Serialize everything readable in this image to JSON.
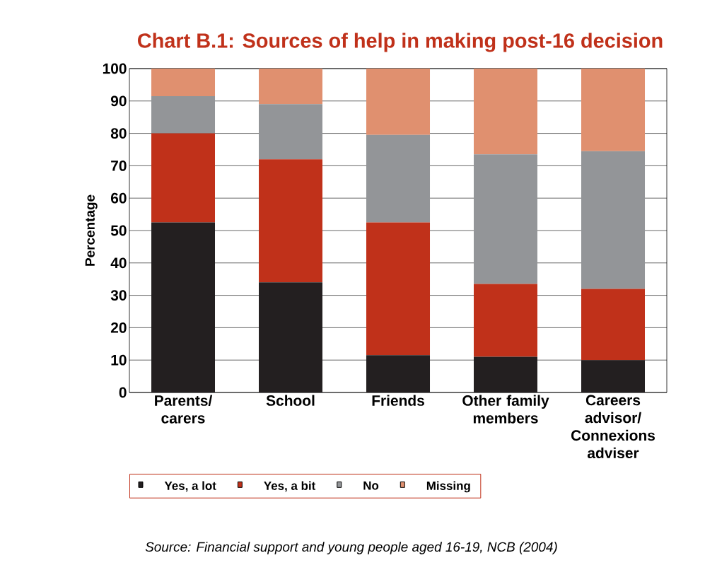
{
  "chart_data": {
    "type": "bar",
    "stacked": true,
    "title": "Chart B.1: Sources of help in making post-16 decision",
    "ylabel": "Percentage",
    "categories": [
      "Parents/ carers",
      "School",
      "Friends",
      "Other family members",
      "Careers advisor/ Connexions adviser"
    ],
    "series": [
      {
        "name": "Yes, a lot",
        "color": "#231f20",
        "values": [
          52.5,
          34,
          11.5,
          11,
          10
        ]
      },
      {
        "name": "Yes, a bit",
        "color": "#c0311a",
        "values": [
          27.5,
          38,
          41,
          22.5,
          22
        ]
      },
      {
        "name": "No",
        "color": "#939598",
        "values": [
          11.5,
          17,
          27,
          40,
          42.5
        ]
      },
      {
        "name": "Missing",
        "color": "#e0906f",
        "values": [
          8.5,
          11,
          20.5,
          26.5,
          25.5
        ]
      }
    ],
    "ylim": [
      0,
      100
    ],
    "yticks": [
      0,
      10,
      20,
      30,
      40,
      50,
      60,
      70,
      80,
      90,
      100
    ],
    "grid": "y",
    "legend": "bottom",
    "annotations": [
      "Source: Financial support and young people aged 16-19, NCB (2004)"
    ]
  }
}
